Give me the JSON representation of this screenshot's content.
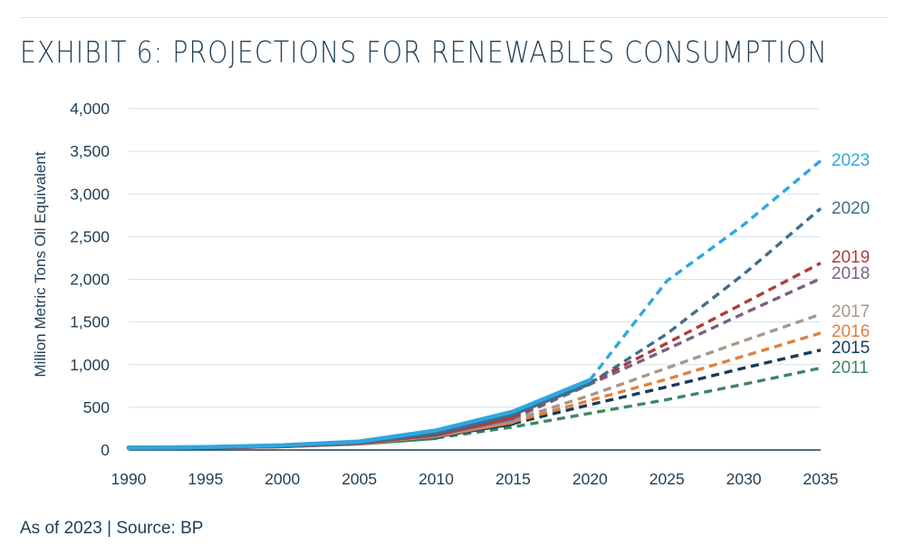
{
  "title": "EXHIBIT 6: PROJECTIONS FOR RENEWABLES CONSUMPTION",
  "footer": "As of 2023 | Source: BP",
  "chart_data": {
    "type": "line",
    "title": "EXHIBIT 6: PROJECTIONS FOR RENEWABLES CONSUMPTION",
    "xlabel": "",
    "ylabel": "Million Metric Tons Oil Equivalent",
    "xlim": [
      1990,
      2035
    ],
    "ylim": [
      0,
      4000
    ],
    "x_ticks": [
      "1990",
      "1995",
      "2000",
      "2005",
      "2010",
      "2015",
      "2020",
      "2025",
      "2030",
      "2035"
    ],
    "y_ticks": [
      "0",
      "500",
      "1,000",
      "1,500",
      "2,000",
      "2,500",
      "3,000",
      "3,500",
      "4,000"
    ],
    "grid": "horizontal",
    "legend": "line-end labels",
    "series": [
      {
        "name": "2011",
        "color": "#3f8563",
        "historical": [
          [
            1990,
            25
          ],
          [
            1995,
            30
          ],
          [
            2000,
            45
          ],
          [
            2005,
            75
          ],
          [
            2010,
            140
          ]
        ],
        "projection": [
          [
            2010,
            140
          ],
          [
            2015,
            270
          ],
          [
            2020,
            430
          ],
          [
            2025,
            590
          ],
          [
            2030,
            770
          ],
          [
            2035,
            960
          ]
        ]
      },
      {
        "name": "2015",
        "color": "#163a5a",
        "historical": [
          [
            1990,
            25
          ],
          [
            1995,
            30
          ],
          [
            2000,
            45
          ],
          [
            2005,
            80
          ],
          [
            2010,
            160
          ],
          [
            2015,
            310
          ]
        ],
        "projection": [
          [
            2015,
            310
          ],
          [
            2020,
            530
          ],
          [
            2025,
            740
          ],
          [
            2030,
            960
          ],
          [
            2035,
            1170
          ]
        ]
      },
      {
        "name": "2016",
        "color": "#e07f3e",
        "historical": [
          [
            1990,
            25
          ],
          [
            1995,
            30
          ],
          [
            2000,
            45
          ],
          [
            2005,
            80
          ],
          [
            2010,
            165
          ],
          [
            2015,
            330
          ]
        ],
        "projection": [
          [
            2015,
            330
          ],
          [
            2020,
            580
          ],
          [
            2025,
            830
          ],
          [
            2030,
            1100
          ],
          [
            2035,
            1370
          ]
        ]
      },
      {
        "name": "2017",
        "color": "#a8978a",
        "historical": [
          [
            1990,
            25
          ],
          [
            1995,
            30
          ],
          [
            2000,
            45
          ],
          [
            2005,
            80
          ],
          [
            2010,
            170
          ],
          [
            2015,
            350
          ]
        ],
        "projection": [
          [
            2015,
            350
          ],
          [
            2020,
            640
          ],
          [
            2025,
            960
          ],
          [
            2030,
            1280
          ],
          [
            2035,
            1590
          ]
        ]
      },
      {
        "name": "2018",
        "color": "#7b5f85",
        "historical": [
          [
            1990,
            25
          ],
          [
            1995,
            30
          ],
          [
            2000,
            45
          ],
          [
            2005,
            85
          ],
          [
            2010,
            180
          ],
          [
            2015,
            370
          ]
        ],
        "projection": [
          [
            2015,
            370
          ],
          [
            2020,
            770
          ],
          [
            2025,
            1180
          ],
          [
            2030,
            1600
          ],
          [
            2035,
            2010
          ]
        ]
      },
      {
        "name": "2019",
        "color": "#b13a3a",
        "historical": [
          [
            1990,
            25
          ],
          [
            1995,
            30
          ],
          [
            2000,
            45
          ],
          [
            2005,
            85
          ],
          [
            2010,
            185
          ],
          [
            2015,
            390
          ]
        ],
        "projection": [
          [
            2015,
            390
          ],
          [
            2020,
            790
          ],
          [
            2025,
            1250
          ],
          [
            2030,
            1720
          ],
          [
            2035,
            2190
          ]
        ]
      },
      {
        "name": "2020",
        "color": "#3f6e8c",
        "historical": [
          [
            1990,
            25
          ],
          [
            1995,
            32
          ],
          [
            2000,
            50
          ],
          [
            2005,
            90
          ],
          [
            2010,
            200
          ],
          [
            2015,
            420
          ],
          [
            2020,
            780
          ]
        ],
        "projection": [
          [
            2020,
            780
          ],
          [
            2025,
            1360
          ],
          [
            2030,
            2060
          ],
          [
            2035,
            2830
          ]
        ]
      },
      {
        "name": "2023",
        "color": "#2ea7e0",
        "historical": [
          [
            1990,
            25
          ],
          [
            1995,
            35
          ],
          [
            2000,
            55
          ],
          [
            2005,
            100
          ],
          [
            2010,
            230
          ],
          [
            2015,
            450
          ],
          [
            2020,
            820
          ]
        ],
        "projection": [
          [
            2020,
            820
          ],
          [
            2025,
            1980
          ],
          [
            2030,
            2640
          ],
          [
            2035,
            3390
          ]
        ]
      }
    ]
  }
}
